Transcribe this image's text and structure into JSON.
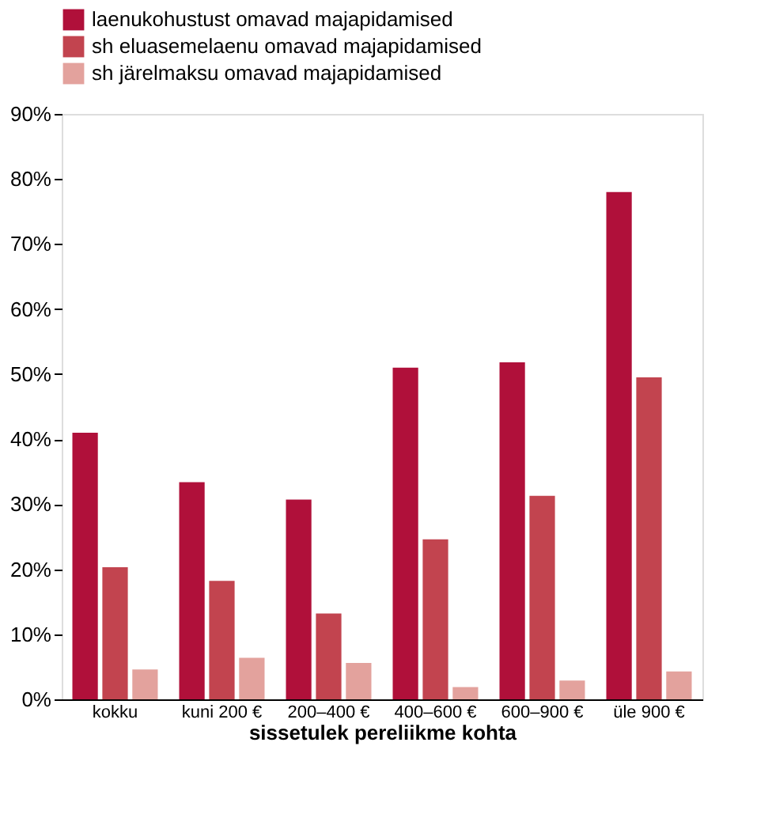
{
  "chart_data": {
    "type": "bar",
    "xlabel": "sissetulek pereliikme kohta",
    "categories": [
      "kokku",
      "kuni 200 €",
      "200–400 €",
      "400–600 €",
      "600–900 €",
      "üle 900 €"
    ],
    "series": [
      {
        "name": "laenukohustust omavad majapidamised",
        "color": "#b0103a",
        "values": [
          41,
          33.4,
          30.7,
          51,
          51.8,
          78
        ]
      },
      {
        "name": "sh eluasemelaenu omavad majapidamised",
        "color": "#c2444f",
        "values": [
          20.3,
          18.2,
          13.2,
          24.6,
          31.3,
          49.5
        ]
      },
      {
        "name": "sh järelmaksu omavad majapidamised",
        "color": "#e3a29d",
        "values": [
          4.6,
          6.4,
          5.6,
          1.9,
          2.9,
          4.3
        ]
      }
    ],
    "ylim": [
      0,
      90
    ],
    "yticks": [
      {
        "value": 0,
        "label": "0%"
      },
      {
        "value": 10,
        "label": "10%"
      },
      {
        "value": 20,
        "label": "20%"
      },
      {
        "value": 30,
        "label": "30%"
      },
      {
        "value": 40,
        "label": "40%"
      },
      {
        "value": 50,
        "label": "50%"
      },
      {
        "value": 60,
        "label": "60%"
      },
      {
        "value": 70,
        "label": "70%"
      },
      {
        "value": 80,
        "label": "80%"
      },
      {
        "value": 90,
        "label": "90%"
      }
    ],
    "grid": false,
    "legend": "top"
  }
}
